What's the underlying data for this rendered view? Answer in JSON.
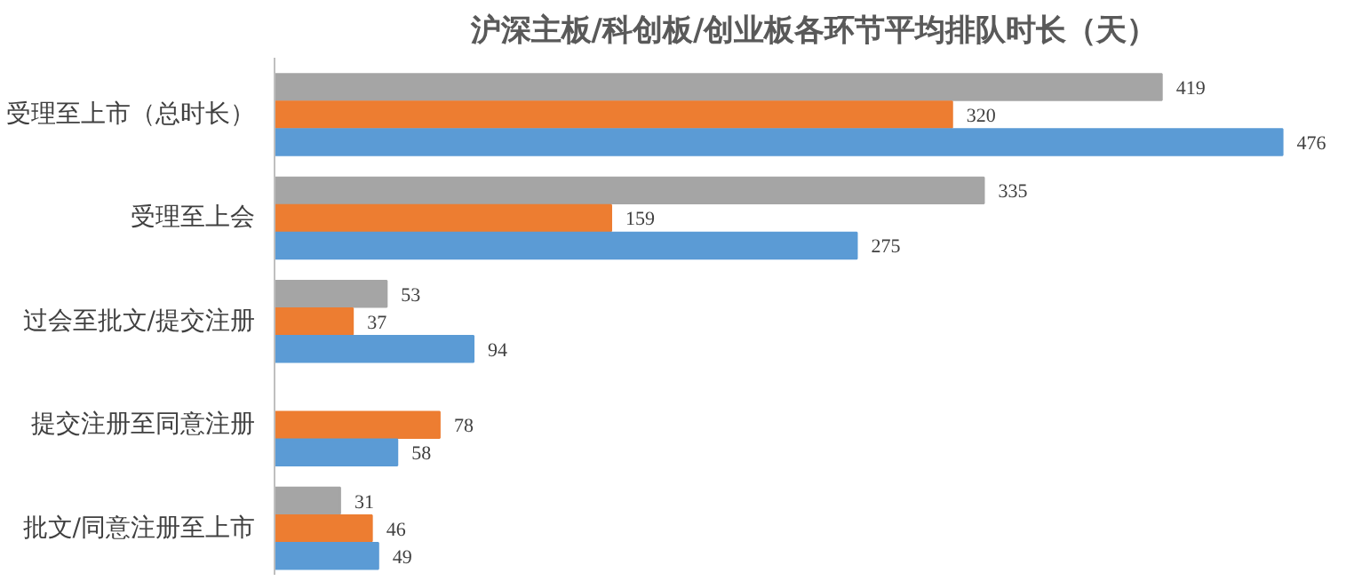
{
  "chart_data": {
    "type": "bar",
    "orientation": "horizontal",
    "title": "沪深主板/科创板/创业板各环节平均排队时长（天）",
    "categories": [
      "受理至上市（总时长）",
      "受理至上会",
      "过会至批文/提交注册",
      "提交注册至同意注册",
      "批文/同意注册至上市"
    ],
    "series": [
      {
        "color": "#a5a5a5",
        "values": [
          419,
          335,
          53,
          null,
          31
        ]
      },
      {
        "color": "#ed7d31",
        "values": [
          320,
          159,
          37,
          78,
          46
        ]
      },
      {
        "color": "#5b9bd5",
        "values": [
          476,
          275,
          94,
          58,
          49
        ]
      }
    ],
    "tick_labels": "y",
    "data_labels": true
  }
}
